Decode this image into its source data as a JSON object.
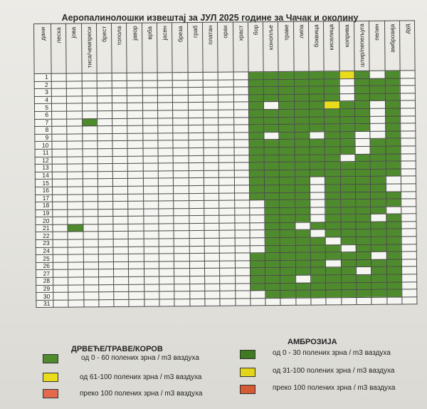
{
  "title": "Аеропалинолошки извештај за ЈУЛ 2025 године за Чачак и околину",
  "columns": [
    "дани",
    "леска",
    "јова",
    "тиса/чемпреси",
    "брест",
    "топола",
    "јавор",
    "врба",
    "јасен",
    "бреза",
    "граб",
    "платан",
    "орах",
    "храст",
    "бор",
    "конопље",
    "траве",
    "липа",
    "боквица",
    "киселица",
    "коприва",
    "штир/пепељуга",
    "пелин",
    "амброзија",
    "дуд"
  ],
  "days": [
    "1",
    "2",
    "3",
    "4",
    "5",
    "6",
    "7",
    "8",
    "9",
    "10",
    "11",
    "12",
    "13",
    "14",
    "15",
    "16",
    "17",
    "18",
    "19",
    "20",
    "21",
    "22",
    "23",
    "24",
    "25",
    "26",
    "27",
    "28",
    "29",
    "30",
    "31"
  ],
  "grid": [
    "-------------GGGGGGYG-G-",
    "-------------GGGGGG-GGG-",
    "-------------GGGGGG-GGG-",
    "-------------GGGGGG-GGG-",
    "-------------G-GGGYGG-G-",
    "-------------GGGGGGGG-G-",
    "--G----------GGGGGGGG-G-",
    "-------------GGGGGGGG-G-",
    "-------------G-GG-GG--G-",
    "-------------GGGGGGG-GG-",
    "-------------GGGGGGG-GG-",
    "-------------GGGGGG-GGG-",
    "-------------GGGGGGGGGG-",
    "-------------GGGGGGGGGG-",
    "-------------GGGG-GGGG--",
    "-------------GGGG-GGGG--",
    "-------------GGGG-GGGGG-",
    "--------------GGG-GGGGG-",
    "--------------GGG-GGGG--",
    "--------------GGG-GGG-G-",
    "-G------------GG-GGGGGG-",
    "--------------GGG-GGGGG-",
    "--------------GGGG-GGGG-",
    "--------------GGGGG-GGG-",
    "-------------GGGGGGGG-G-",
    "-------------GGGGG-GGGG-",
    "-------------GGGGGGG-GG-",
    "-------------GGG-GGGGGG-",
    "-------------GGGGGGGGGG-",
    "--------------GGGGGGGGG-",
    "------------------------"
  ],
  "legend_left": {
    "title": "ДРВЕЋЕ/ТРАВЕ/КОРОВ",
    "items": [
      {
        "label": "од 0 - 60 полених зрна / m3 ваздуха",
        "color": "#4e8b2c"
      },
      {
        "label": "од 61-100 полених зрна / m3 ваздуха",
        "color": "#e8dc1c"
      },
      {
        "label": "преко 100 полених зрна / m3 ваздуха",
        "color": "#e46a4d"
      }
    ]
  },
  "legend_right": {
    "title": "АМБРОЗИЈА",
    "items": [
      {
        "label": "од 0 - 30 полених зрна / m3 ваздуха",
        "color": "#3f7a22"
      },
      {
        "label": "од 31-100 полених зрна / m3 ваздуха",
        "color": "#e2d51a"
      },
      {
        "label": "преко 100 полених зрна / m3 ваздуха",
        "color": "#d45a33"
      }
    ]
  }
}
